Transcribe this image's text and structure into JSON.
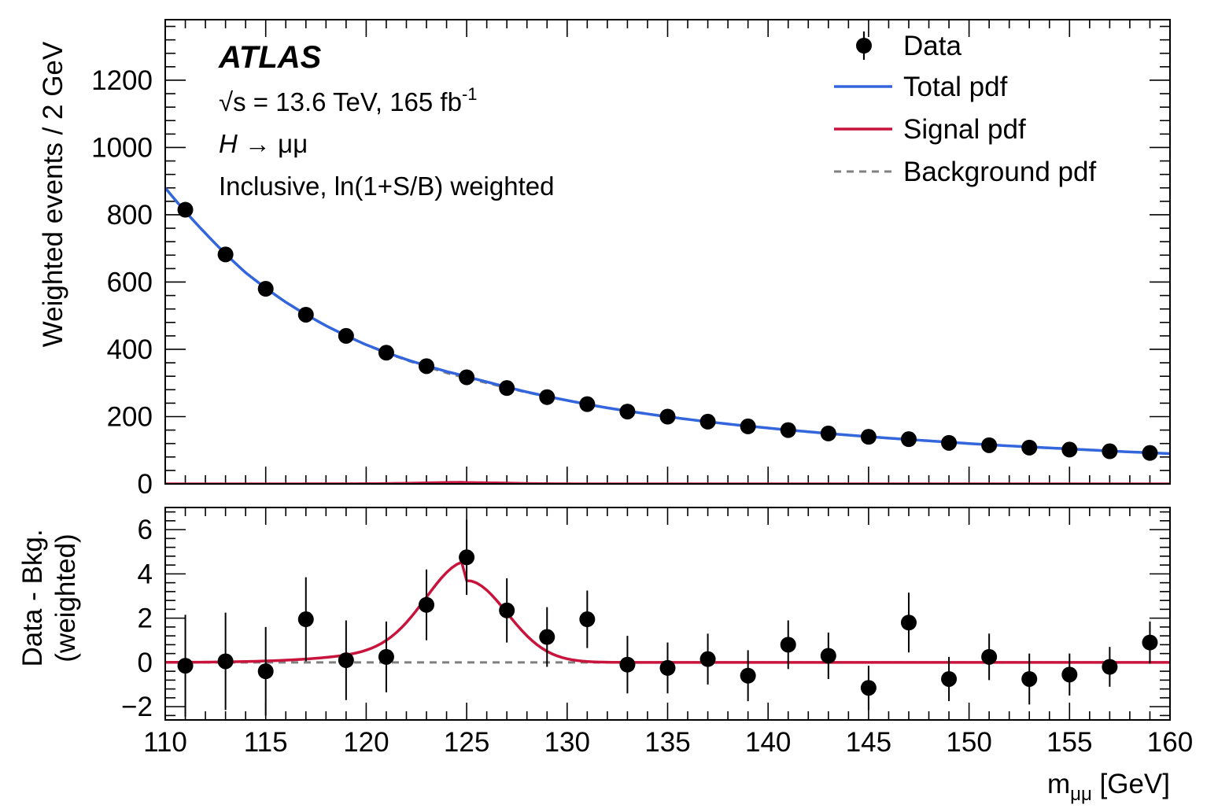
{
  "chart_data": {
    "type": "scatter",
    "experiment": "ATLAS",
    "energy_label": "s = 13.6 TeV, 165 fb",
    "energy_prefix": "√",
    "lumi_exponent": "-1",
    "process_H": "H",
    "process_arrow": " → μμ",
    "category_label": "Inclusive, ln(1+S/B) weighted",
    "xlabel_main": "m",
    "xlabel_sub": "μμ",
    "xlabel_unit": " [GeV]",
    "xlim": [
      110,
      160
    ],
    "x_ticks": [
      "110",
      "115",
      "120",
      "125",
      "130",
      "135",
      "140",
      "145",
      "150",
      "155",
      "160"
    ],
    "legend_position": "top-right",
    "legend": {
      "data": "Data",
      "total": "Total pdf",
      "signal": "Signal pdf",
      "background": "Background pdf"
    },
    "colors": {
      "data": "#000000",
      "total": "#3366dd",
      "signal": "#c8143c",
      "background": "#808080"
    },
    "signal_model": {
      "peak_mass": 125,
      "peak_height": 3.7,
      "width": 2.0,
      "low_tail_slope": 0.055
    },
    "main_panel": {
      "ylabel": "Weighted events / 2 GeV",
      "ylim": [
        0,
        1380
      ],
      "y_ticks": [
        "0",
        "200",
        "400",
        "600",
        "800",
        "1000",
        "1200"
      ],
      "x": [
        111,
        113,
        115,
        117,
        119,
        121,
        123,
        125,
        127,
        129,
        131,
        133,
        135,
        137,
        139,
        141,
        143,
        145,
        147,
        149,
        151,
        153,
        155,
        157,
        159
      ],
      "data_values": [
        815,
        682,
        580,
        503,
        440,
        390,
        350,
        317,
        285,
        258,
        237,
        215,
        200,
        185,
        171,
        160,
        150,
        140,
        133,
        122,
        115,
        108,
        102,
        97,
        92
      ],
      "background_curve": {
        "x": [
          110,
          112,
          114,
          116,
          118,
          120,
          122,
          124,
          126,
          128,
          130,
          132,
          134,
          136,
          138,
          140,
          142,
          144,
          146,
          148,
          150,
          152,
          154,
          156,
          158,
          160
        ],
        "y": [
          880,
          745,
          628,
          540,
          470,
          413,
          368,
          330,
          300,
          272,
          248,
          226,
          208,
          192,
          178,
          166,
          155,
          145,
          136,
          128,
          120,
          113,
          107,
          101,
          95,
          90
        ]
      }
    },
    "ratio_panel": {
      "ylabel_line1": "Data - Bkg.",
      "ylabel_line2": "(weighted)",
      "ylim": [
        -2.6,
        7.0
      ],
      "y_ticks": [
        "6",
        "4",
        "2",
        "0",
        "−2"
      ],
      "x": [
        111,
        113,
        115,
        117,
        119,
        121,
        123,
        125,
        127,
        129,
        131,
        133,
        135,
        137,
        139,
        141,
        143,
        145,
        147,
        149,
        151,
        153,
        155,
        157,
        159
      ],
      "values": [
        -0.15,
        0.05,
        -0.4,
        1.95,
        0.1,
        0.25,
        2.6,
        4.75,
        2.35,
        1.15,
        1.95,
        -0.1,
        -0.25,
        0.15,
        -0.6,
        0.8,
        0.3,
        -1.15,
        1.8,
        -0.75,
        0.25,
        -0.75,
        -0.55,
        -0.2,
        0.9
      ],
      "errors": [
        2.3,
        2.2,
        2.0,
        1.9,
        1.8,
        1.6,
        1.6,
        1.7,
        1.45,
        1.35,
        1.3,
        1.3,
        1.15,
        1.15,
        1.15,
        1.1,
        1.05,
        1.0,
        1.35,
        1.0,
        1.05,
        1.15,
        0.95,
        0.9,
        0.95
      ]
    }
  }
}
